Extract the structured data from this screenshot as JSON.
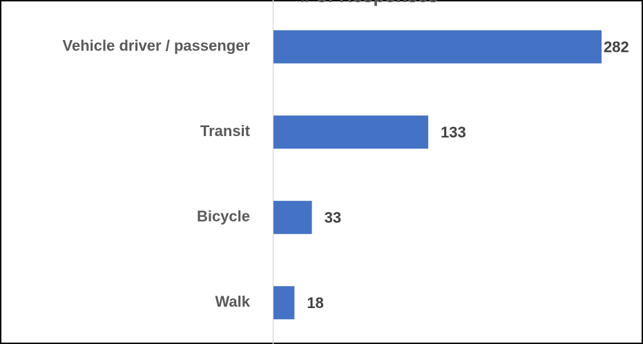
{
  "chart_data": {
    "type": "hbar",
    "title": "# of Responses",
    "categories": [
      "Vehicle driver / passenger",
      "Transit",
      "Bicycle",
      "Walk"
    ],
    "values": [
      282,
      133,
      33,
      18
    ],
    "color": "#4472c4"
  }
}
